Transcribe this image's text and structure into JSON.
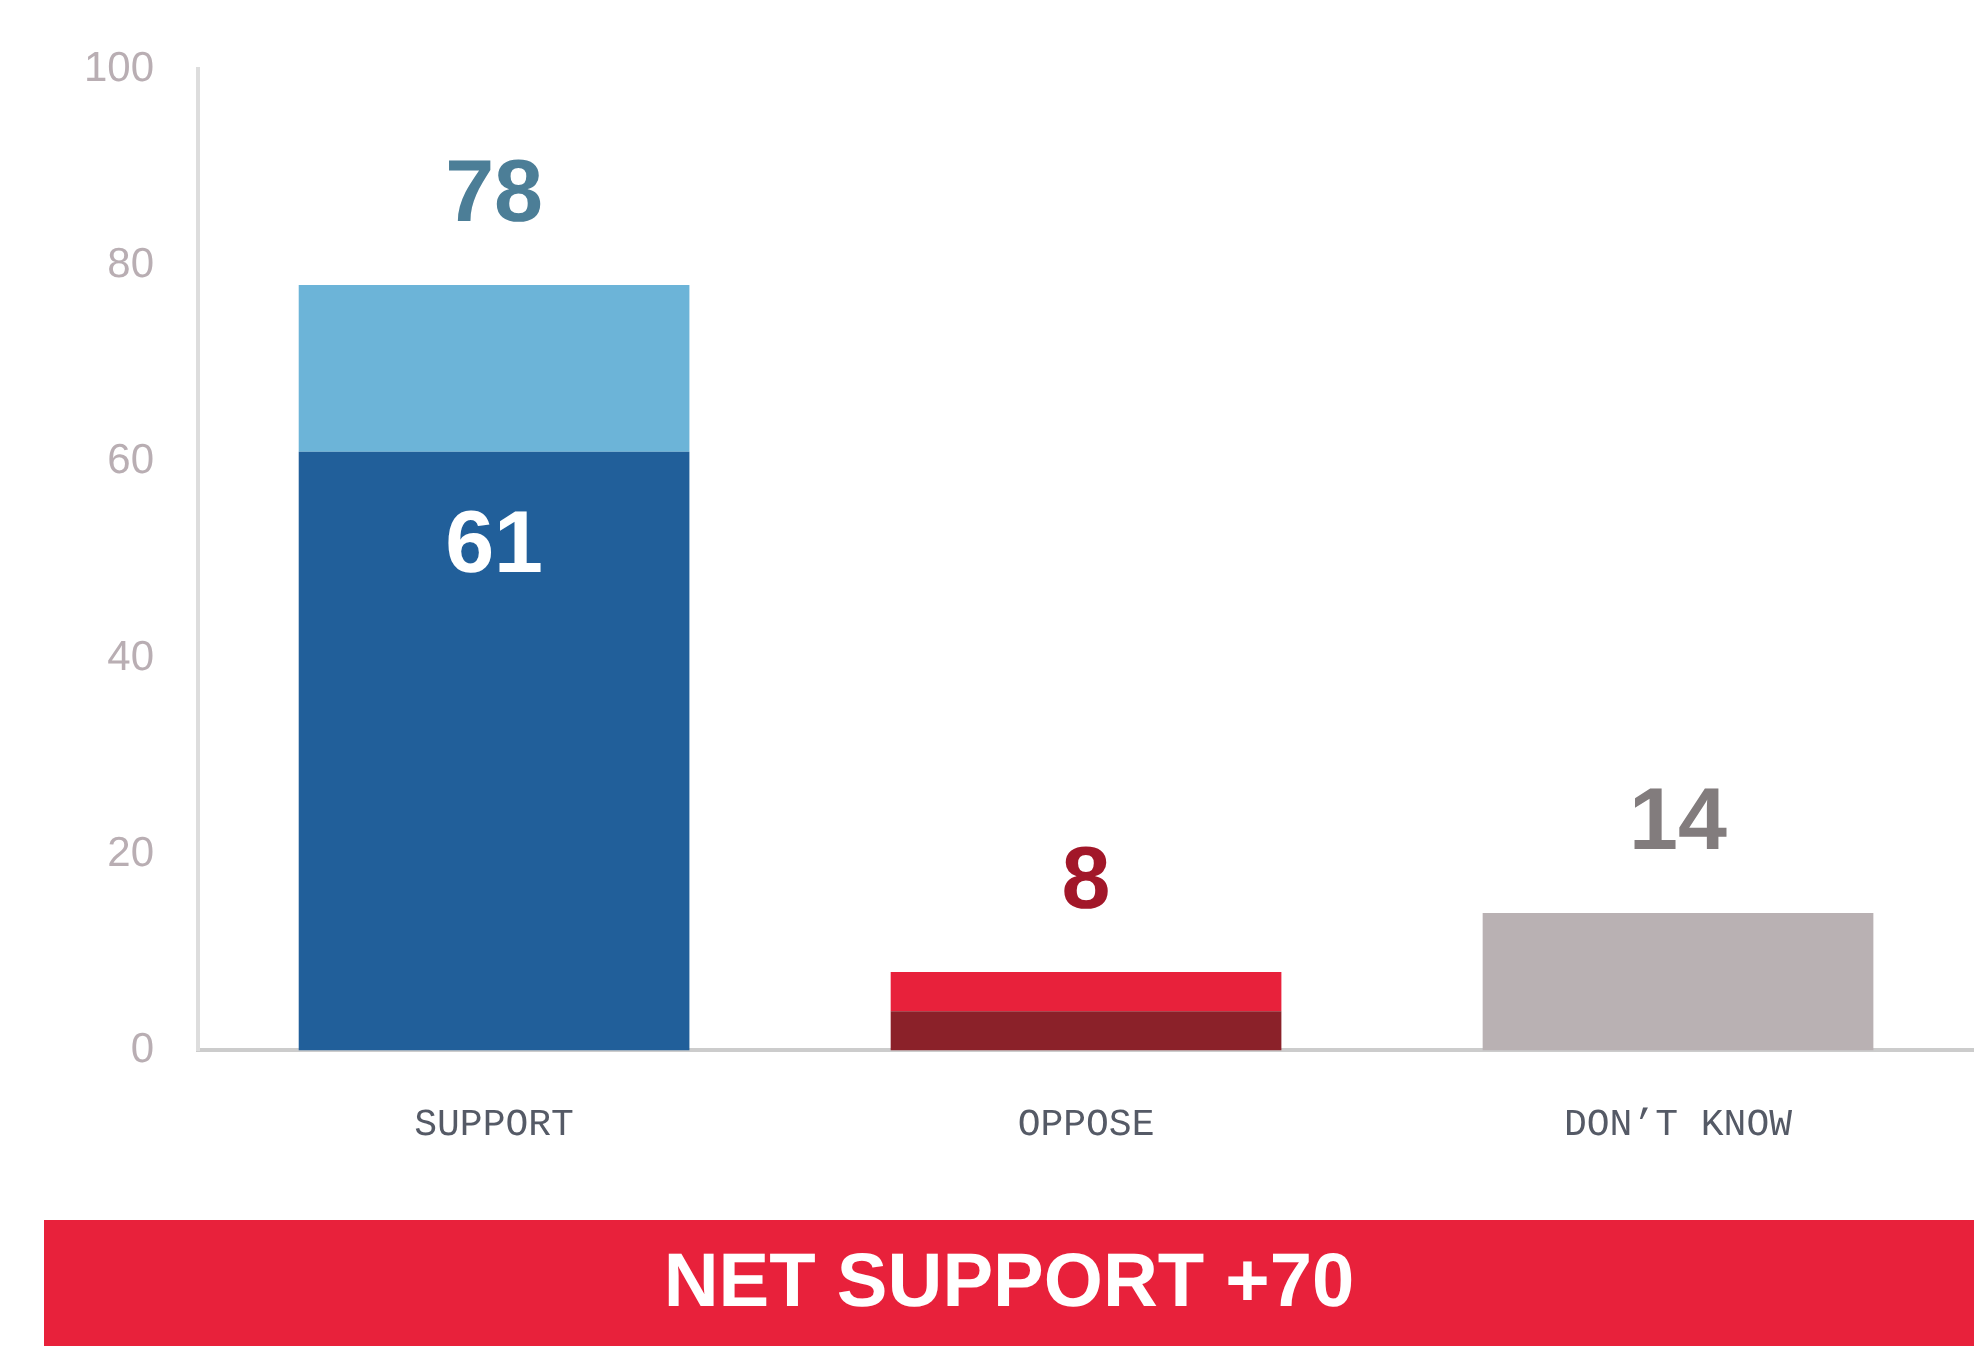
{
  "chart_data": {
    "type": "bar",
    "stacked": true,
    "categories": [
      "SUPPORT",
      "OPPOSE",
      "DON’T KNOW"
    ],
    "series": [
      {
        "colors": [
          "#215f9a",
          "#8b2129",
          "#b9b1b3"
        ],
        "values": [
          61,
          4,
          14
        ],
        "value_labels": [
          "61",
          null,
          "14"
        ]
      },
      {
        "colors": [
          "#6cb4d8",
          "#e8213b",
          null
        ],
        "values": [
          17,
          4,
          null
        ]
      }
    ],
    "totals": [
      "78",
      "8",
      null
    ],
    "ylim": [
      0,
      100
    ],
    "yticks": [
      0,
      20,
      40,
      60,
      80,
      100
    ],
    "grid": false,
    "legend": false,
    "annotations": [
      "NET SUPPORT +70"
    ]
  }
}
